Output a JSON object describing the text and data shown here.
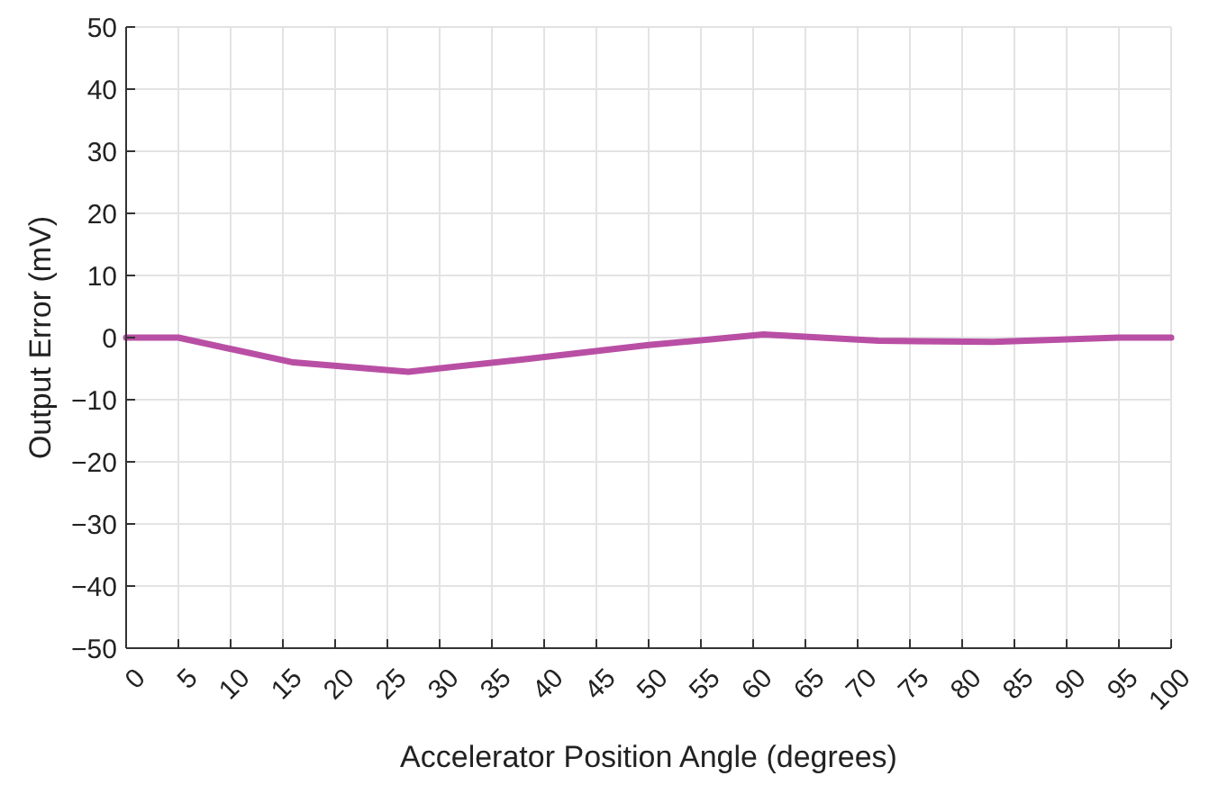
{
  "chart_data": {
    "type": "line",
    "xlabel": "Accelerator Position Angle (degrees)",
    "ylabel": "Output Error (mV)",
    "x": [
      0,
      5,
      16,
      27,
      38,
      50,
      61,
      72,
      83,
      95,
      100
    ],
    "series": [
      {
        "color": "#b94fa4",
        "values": [
          0,
          0,
          -4,
          -5.5,
          -3.5,
          -1.2,
          0.5,
          -0.5,
          -0.7,
          0,
          0
        ]
      }
    ],
    "xlim": [
      0,
      100
    ],
    "xticks": [
      0,
      5,
      10,
      15,
      20,
      25,
      30,
      35,
      40,
      45,
      50,
      55,
      60,
      65,
      70,
      75,
      80,
      85,
      90,
      95,
      100
    ],
    "ylim": [
      -50,
      50
    ],
    "yticks": [
      {
        "value": -50,
        "label": "−50"
      },
      {
        "value": -40,
        "label": "−40"
      },
      {
        "value": -30,
        "label": "−30"
      },
      {
        "value": -20,
        "label": "−20"
      },
      {
        "value": -10,
        "label": "−10"
      },
      0,
      10,
      20,
      30,
      40,
      50
    ],
    "grid": true,
    "marker": "none",
    "line_style": "solid"
  }
}
